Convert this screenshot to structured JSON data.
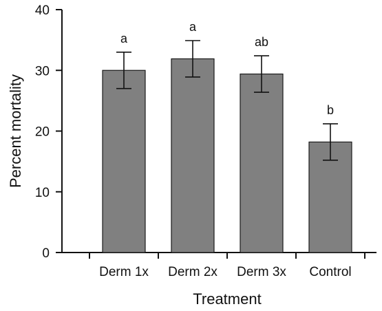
{
  "chart_data": {
    "type": "bar",
    "title": "",
    "xlabel": "Treatment",
    "ylabel": "Percent mortality",
    "ylim": [
      0,
      40
    ],
    "yticks": [
      0,
      10,
      20,
      30,
      40
    ],
    "grid": false,
    "legend": "none",
    "categories": [
      "Derm 1x",
      "Derm 2x",
      "Derm 3x",
      "Control"
    ],
    "series": [
      {
        "values": [
          30.0,
          31.9,
          29.4,
          18.2
        ],
        "error": [
          3.0,
          3.0,
          3.0,
          3.0
        ],
        "labels": [
          "a",
          "a",
          "ab",
          "b"
        ]
      }
    ],
    "colors": {
      "bar_fill": "#808080",
      "bar_stroke": "#1a1a1a",
      "axis": "#111111"
    }
  }
}
